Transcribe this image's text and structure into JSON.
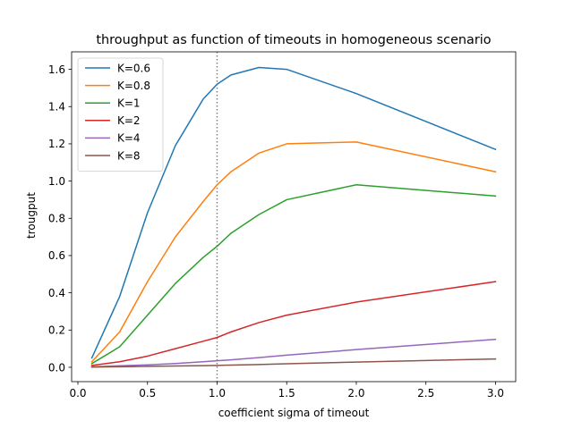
{
  "chart_data": {
    "type": "line",
    "title": "throughput as function of timeouts in homogeneous scenario",
    "xlabel": "coefficient sigma of timeout",
    "ylabel": "trougput",
    "xlim": [
      -0.045,
      3.145
    ],
    "ylim": [
      -0.077,
      1.694
    ],
    "xticks": [
      0.0,
      0.5,
      1.0,
      1.5,
      2.0,
      2.5,
      3.0
    ],
    "xtick_labels": [
      "0.0",
      "0.5",
      "1.0",
      "1.5",
      "2.0",
      "2.5",
      "3.0"
    ],
    "yticks": [
      0.0,
      0.2,
      0.4,
      0.6,
      0.8,
      1.0,
      1.2,
      1.4,
      1.6
    ],
    "ytick_labels": [
      "0.0",
      "0.2",
      "0.4",
      "0.6",
      "0.8",
      "1.0",
      "1.2",
      "1.4",
      "1.6"
    ],
    "grid": false,
    "legend_position": "upper-left",
    "vline": {
      "x": 1.0,
      "style": "dotted",
      "color": "#808080"
    },
    "x": [
      0.1,
      0.3,
      0.5,
      0.7,
      0.9,
      1.0,
      1.1,
      1.3,
      1.5,
      2.0,
      3.0
    ],
    "series": [
      {
        "name": "K=0.6",
        "color": "#1f77b4",
        "values": [
          0.05,
          0.38,
          0.83,
          1.19,
          1.44,
          1.52,
          1.57,
          1.61,
          1.6,
          1.47,
          1.17
        ]
      },
      {
        "name": "K=0.8",
        "color": "#ff7f0e",
        "values": [
          0.03,
          0.19,
          0.46,
          0.7,
          0.89,
          0.98,
          1.05,
          1.15,
          1.2,
          1.21,
          1.05
        ]
      },
      {
        "name": "K=1",
        "color": "#2ca02c",
        "values": [
          0.02,
          0.11,
          0.28,
          0.45,
          0.59,
          0.65,
          0.72,
          0.82,
          0.9,
          0.98,
          0.92
        ]
      },
      {
        "name": "K=2",
        "color": "#d62728",
        "values": [
          0.01,
          0.03,
          0.06,
          0.1,
          0.14,
          0.16,
          0.19,
          0.24,
          0.28,
          0.35,
          0.46
        ]
      },
      {
        "name": "K=4",
        "color": "#9467bd",
        "values": [
          0.003,
          0.008,
          0.013,
          0.02,
          0.03,
          0.035,
          0.04,
          0.052,
          0.065,
          0.095,
          0.15
        ]
      },
      {
        "name": "K=8",
        "color": "#8c564b",
        "values": [
          0.001,
          0.003,
          0.005,
          0.007,
          0.009,
          0.01,
          0.012,
          0.015,
          0.019,
          0.028,
          0.045
        ]
      }
    ]
  }
}
